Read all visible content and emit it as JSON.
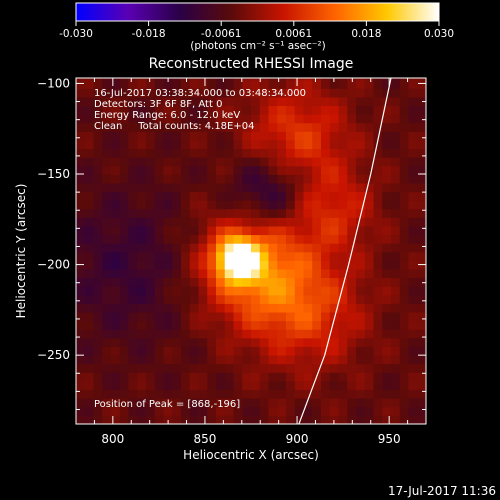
{
  "chart_data": {
    "type": "heatmap",
    "title": "Reconstructed RHESSI Image",
    "xlabel": "Heliocentric X (arcsec)",
    "ylabel": "Heliocentric Y (arcsec)",
    "xlim": [
      780,
      970
    ],
    "ylim": [
      -288,
      -97
    ],
    "x_ticks": [
      800,
      850,
      900,
      950
    ],
    "y_ticks": [
      -100,
      -150,
      -200,
      -250
    ],
    "colorbar": {
      "min": -0.03,
      "max": 0.03,
      "ticks": [
        "-0.030",
        "-0.018",
        "-0.0061",
        "0.0061",
        "0.018",
        "0.030"
      ],
      "label": "(photons cm⁻² s⁻¹ asec⁻²)",
      "colormap": [
        "#0000ff",
        "#5a00b4",
        "#2a0046",
        "#5a0a0a",
        "#c81400",
        "#ff6400",
        "#ffc800",
        "#ffffff"
      ]
    },
    "annotations": [
      "16-Jul-2017 03:38:34.000 to 03:48:34.000",
      "Detectors: 3F 6F 8F, Att 0",
      "Energy Range: 6.0 - 12.0 keV",
      "Clean     Total counts: 4.18E+04"
    ],
    "peak_label": "Position of Peak = [868,-196]",
    "peak": {
      "x": 868,
      "y": -196
    },
    "limb_curve": [
      [
        901,
        -288
      ],
      [
        915,
        -250
      ],
      [
        928,
        -200
      ],
      [
        940,
        -150
      ],
      [
        951,
        -97
      ]
    ],
    "image_sources": [
      {
        "x": 868,
        "y": -197,
        "amplitude": 0.03,
        "width": 8
      },
      {
        "x": 875,
        "y": -200,
        "amplitude": 0.018,
        "width": 22
      },
      {
        "x": 900,
        "y": -130,
        "amplitude": 0.012,
        "width": 20
      },
      {
        "x": 905,
        "y": -225,
        "amplitude": 0.012,
        "width": 22
      },
      {
        "x": 885,
        "y": -160,
        "amplitude": -0.012,
        "width": 15
      },
      {
        "x": 920,
        "y": -170,
        "amplitude": 0.009,
        "width": 16
      },
      {
        "x": 810,
        "y": -200,
        "amplitude": -0.006,
        "width": 30
      }
    ]
  },
  "footer_timestamp": "17-Jul-2017 11:36"
}
